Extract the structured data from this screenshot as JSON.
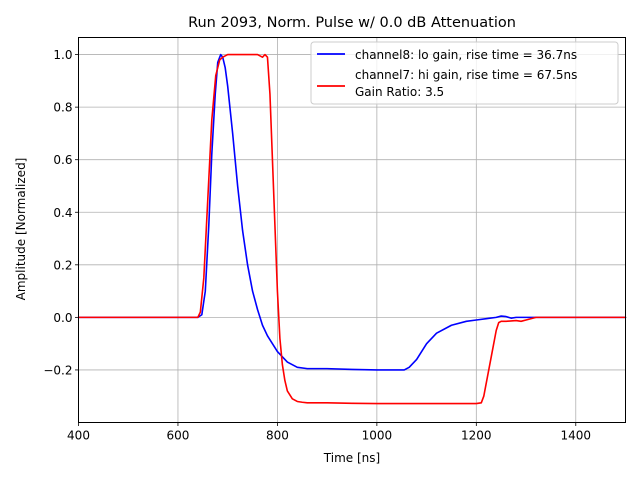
{
  "chart_data": {
    "type": "line",
    "title": "Run 2093, Norm. Pulse w/ 0.0 dB Attenuation",
    "xlabel": "Time [ns]",
    "ylabel": "Amplitude [Normalized]",
    "xlim": [
      400,
      1500
    ],
    "ylim": [
      -0.4,
      1.065
    ],
    "xticks": [
      400,
      600,
      800,
      1000,
      1200,
      1400
    ],
    "yticks": [
      -0.2,
      0.0,
      0.2,
      0.4,
      0.6,
      0.8,
      1.0
    ],
    "ytick_labels": [
      "−0.2",
      "0.0",
      "0.2",
      "0.4",
      "0.6",
      "0.8",
      "1.0"
    ],
    "grid": true,
    "legend_position": "top-right",
    "legend_extra": "Gain Ratio: 3.5",
    "series": [
      {
        "name": "channel8: lo gain, rise time = 36.7ns",
        "color": "#0000ff",
        "x": [
          400,
          640,
          648,
          655,
          662,
          668,
          675,
          680,
          686,
          690,
          695,
          700,
          710,
          720,
          730,
          740,
          750,
          760,
          770,
          780,
          790,
          800,
          820,
          840,
          860,
          880,
          900,
          950,
          1000,
          1020,
          1040,
          1055,
          1065,
          1080,
          1100,
          1120,
          1150,
          1180,
          1200,
          1220,
          1240,
          1250,
          1260,
          1270,
          1280,
          1300,
          1350,
          1400,
          1500
        ],
        "y": [
          0.0,
          0.0,
          0.01,
          0.1,
          0.35,
          0.62,
          0.85,
          0.97,
          1.0,
          0.99,
          0.95,
          0.88,
          0.7,
          0.5,
          0.33,
          0.2,
          0.1,
          0.03,
          -0.03,
          -0.07,
          -0.1,
          -0.13,
          -0.17,
          -0.19,
          -0.195,
          -0.195,
          -0.195,
          -0.198,
          -0.2,
          -0.2,
          -0.2,
          -0.2,
          -0.19,
          -0.16,
          -0.1,
          -0.06,
          -0.03,
          -0.015,
          -0.01,
          -0.005,
          0.0,
          0.005,
          0.003,
          -0.003,
          0.0,
          0.0,
          0.0,
          0.0,
          0.0
        ]
      },
      {
        "name": "channel7: hi gain, rise time = 67.5ns",
        "color": "#ff0000",
        "x": [
          400,
          640,
          645,
          652,
          660,
          668,
          676,
          684,
          690,
          700,
          720,
          740,
          760,
          770,
          775,
          780,
          785,
          790,
          795,
          800,
          805,
          810,
          815,
          820,
          830,
          840,
          850,
          860,
          880,
          900,
          950,
          1000,
          1100,
          1150,
          1200,
          1210,
          1215,
          1220,
          1230,
          1240,
          1245,
          1250,
          1255,
          1260,
          1280,
          1290,
          1300,
          1320,
          1340,
          1400,
          1500
        ],
        "y": [
          0.0,
          0.0,
          0.02,
          0.15,
          0.45,
          0.75,
          0.92,
          0.98,
          0.99,
          1.0,
          1.0,
          1.0,
          1.0,
          0.99,
          1.0,
          0.99,
          0.85,
          0.6,
          0.35,
          0.1,
          -0.08,
          -0.18,
          -0.24,
          -0.28,
          -0.31,
          -0.32,
          -0.323,
          -0.325,
          -0.325,
          -0.325,
          -0.327,
          -0.328,
          -0.328,
          -0.328,
          -0.328,
          -0.325,
          -0.3,
          -0.25,
          -0.15,
          -0.05,
          -0.02,
          -0.015,
          -0.015,
          -0.015,
          -0.012,
          -0.015,
          -0.01,
          0.0,
          0.0,
          0.0,
          0.0
        ]
      }
    ]
  }
}
